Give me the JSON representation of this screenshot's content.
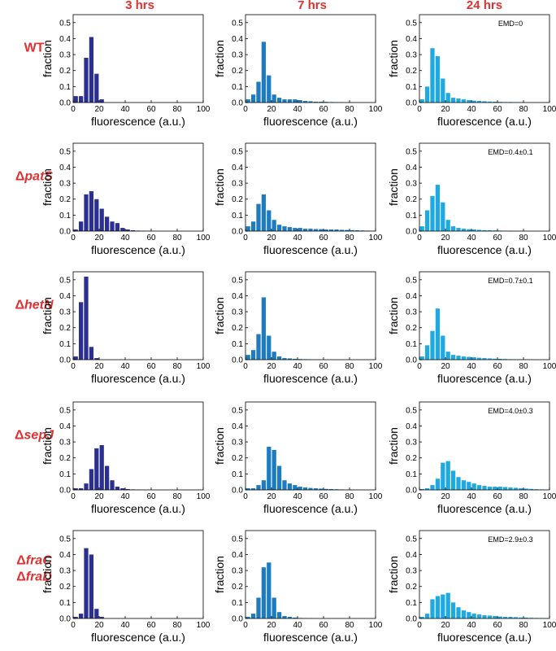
{
  "column_headers": [
    "3 hrs",
    "7 hrs",
    "24 hrs"
  ],
  "row_headers": [
    {
      "prefix": "",
      "name": "WT",
      "line2_prefix": "",
      "line2": ""
    },
    {
      "prefix": "Δ",
      "name": "patS",
      "line2_prefix": "",
      "line2": ""
    },
    {
      "prefix": "Δ",
      "name": "hetN",
      "line2_prefix": "",
      "line2": ""
    },
    {
      "prefix": "Δ",
      "name": "sepJ",
      "line2_prefix": "",
      "line2": ""
    },
    {
      "prefix": "Δ",
      "name": "fraC",
      "line2_prefix": "Δ",
      "line2": "fraD"
    }
  ],
  "axis": {
    "xlabel": "fluorescence (a.u.)",
    "ylabel": "fraction",
    "xlim": [
      0,
      100
    ],
    "ylim": [
      0,
      0.55
    ],
    "xticks": [
      "0",
      "20",
      "40",
      "60",
      "80",
      "100"
    ],
    "yticks": [
      "0.0",
      "0.1",
      "0.2",
      "0.3",
      "0.4",
      "0.5"
    ],
    "bin_width": 4
  },
  "colors": {
    "3 hrs": "#2b2f8f",
    "7 hrs": "#1d7bbf",
    "24 hrs": "#1fa9e1",
    "headers": "#e03030"
  },
  "chart_data": [
    {
      "type": "bar",
      "row": "WT",
      "col": "3 hrs",
      "color": "#2b2f8f",
      "annotation": "",
      "values": [
        0.04,
        0.04,
        0.28,
        0.41,
        0.18,
        0.02,
        0,
        0,
        0,
        0,
        0,
        0,
        0,
        0,
        0,
        0,
        0,
        0,
        0,
        0,
        0,
        0,
        0,
        0,
        0
      ]
    },
    {
      "type": "bar",
      "row": "WT",
      "col": "7 hrs",
      "color": "#1d7bbf",
      "annotation": "",
      "values": [
        0.02,
        0.05,
        0.13,
        0.38,
        0.17,
        0.05,
        0.03,
        0.02,
        0.02,
        0.02,
        0.015,
        0.01,
        0.008,
        0.005,
        0.005,
        0.004,
        0.003,
        0.002,
        0.002,
        0.001,
        0.001,
        0,
        0,
        0,
        0
      ]
    },
    {
      "type": "bar",
      "row": "WT",
      "col": "24 hrs",
      "color": "#1fa9e1",
      "annotation": "EMD=0",
      "values": [
        0.02,
        0.1,
        0.34,
        0.29,
        0.15,
        0.06,
        0.03,
        0.025,
        0.02,
        0.015,
        0.012,
        0.01,
        0.008,
        0.006,
        0.005,
        0.004,
        0.003,
        0.003,
        0.002,
        0.002,
        0.001,
        0.001,
        0.001,
        0,
        0
      ]
    },
    {
      "type": "bar",
      "row": "ΔpatS",
      "col": "3 hrs",
      "color": "#2b2f8f",
      "annotation": "",
      "values": [
        0.01,
        0.06,
        0.23,
        0.25,
        0.2,
        0.14,
        0.09,
        0.06,
        0.05,
        0.02,
        0.01,
        0.005,
        0.003,
        0.002,
        0.001,
        0,
        0,
        0,
        0,
        0,
        0,
        0,
        0,
        0,
        0
      ]
    },
    {
      "type": "bar",
      "row": "ΔpatS",
      "col": "7 hrs",
      "color": "#1d7bbf",
      "annotation": "",
      "values": [
        0.03,
        0.06,
        0.17,
        0.23,
        0.13,
        0.07,
        0.04,
        0.03,
        0.025,
        0.02,
        0.02,
        0.015,
        0.015,
        0.013,
        0.012,
        0.01,
        0.01,
        0.01,
        0.008,
        0.007,
        0.006,
        0.005,
        0.004,
        0.003,
        0.002
      ]
    },
    {
      "type": "bar",
      "row": "ΔpatS",
      "col": "24 hrs",
      "color": "#1fa9e1",
      "annotation": "EMD=0.4±0.1",
      "values": [
        0.03,
        0.13,
        0.22,
        0.29,
        0.18,
        0.07,
        0.03,
        0.02,
        0.015,
        0.012,
        0.01,
        0.008,
        0.006,
        0.005,
        0.004,
        0.003,
        0.002,
        0.002,
        0.001,
        0.001,
        0,
        0,
        0,
        0,
        0
      ]
    },
    {
      "type": "bar",
      "row": "ΔhetN",
      "col": "3 hrs",
      "color": "#2b2f8f",
      "annotation": "",
      "values": [
        0.02,
        0.36,
        0.52,
        0.08,
        0.01,
        0,
        0,
        0,
        0,
        0,
        0,
        0,
        0,
        0,
        0,
        0,
        0,
        0,
        0,
        0,
        0,
        0,
        0,
        0,
        0
      ]
    },
    {
      "type": "bar",
      "row": "ΔhetN",
      "col": "7 hrs",
      "color": "#1d7bbf",
      "annotation": "",
      "values": [
        0.03,
        0.06,
        0.16,
        0.39,
        0.15,
        0.05,
        0.02,
        0.01,
        0.008,
        0.005,
        0.004,
        0.003,
        0.002,
        0.001,
        0.001,
        0,
        0,
        0,
        0,
        0,
        0,
        0,
        0,
        0,
        0
      ]
    },
    {
      "type": "bar",
      "row": "ΔhetN",
      "col": "24 hrs",
      "color": "#1fa9e1",
      "annotation": "EMD=0.7±0.1",
      "values": [
        0.02,
        0.09,
        0.18,
        0.32,
        0.15,
        0.05,
        0.03,
        0.025,
        0.02,
        0.018,
        0.015,
        0.012,
        0.01,
        0.008,
        0.006,
        0.005,
        0.004,
        0.003,
        0.002,
        0.002,
        0.001,
        0.001,
        0,
        0,
        0
      ]
    },
    {
      "type": "bar",
      "row": "ΔsepJ",
      "col": "3 hrs",
      "color": "#2b2f8f",
      "annotation": "",
      "values": [
        0.01,
        0.01,
        0.04,
        0.13,
        0.26,
        0.28,
        0.15,
        0.06,
        0.02,
        0.01,
        0.005,
        0.003,
        0.002,
        0.001,
        0,
        0,
        0,
        0,
        0,
        0,
        0,
        0,
        0,
        0,
        0
      ]
    },
    {
      "type": "bar",
      "row": "ΔsepJ",
      "col": "7 hrs",
      "color": "#1d7bbf",
      "annotation": "",
      "values": [
        0.01,
        0.01,
        0.03,
        0.06,
        0.27,
        0.25,
        0.15,
        0.06,
        0.04,
        0.03,
        0.02,
        0.015,
        0.012,
        0.01,
        0.008,
        0.006,
        0.005,
        0.004,
        0.003,
        0.002,
        0.002,
        0.001,
        0.001,
        0,
        0
      ]
    },
    {
      "type": "bar",
      "row": "ΔsepJ",
      "col": "24 hrs",
      "color": "#1fa9e1",
      "annotation": "EMD=4.0±0.3",
      "values": [
        0.005,
        0.01,
        0.03,
        0.07,
        0.17,
        0.18,
        0.12,
        0.08,
        0.06,
        0.05,
        0.04,
        0.03,
        0.025,
        0.02,
        0.02,
        0.02,
        0.018,
        0.015,
        0.013,
        0.01,
        0.008,
        0.006,
        0.004,
        0.003,
        0.002
      ]
    },
    {
      "type": "bar",
      "row": "ΔfraC ΔfraD",
      "col": "3 hrs",
      "color": "#2b2f8f",
      "annotation": "",
      "values": [
        0.01,
        0.03,
        0.44,
        0.4,
        0.06,
        0.01,
        0,
        0,
        0,
        0,
        0,
        0,
        0,
        0,
        0,
        0,
        0,
        0,
        0,
        0,
        0,
        0,
        0,
        0,
        0
      ]
    },
    {
      "type": "bar",
      "row": "ΔfraC ΔfraD",
      "col": "7 hrs",
      "color": "#1d7bbf",
      "annotation": "",
      "values": [
        0.01,
        0.03,
        0.13,
        0.32,
        0.35,
        0.13,
        0.04,
        0.015,
        0.01,
        0.005,
        0.003,
        0.002,
        0.001,
        0,
        0,
        0,
        0,
        0,
        0,
        0,
        0,
        0,
        0,
        0,
        0
      ]
    },
    {
      "type": "bar",
      "row": "ΔfraC ΔfraD",
      "col": "24 hrs",
      "color": "#1fa9e1",
      "annotation": "EMD=2.9±0.3",
      "values": [
        0.01,
        0.03,
        0.12,
        0.14,
        0.15,
        0.16,
        0.1,
        0.07,
        0.05,
        0.04,
        0.03,
        0.025,
        0.02,
        0.018,
        0.015,
        0.012,
        0.01,
        0.01,
        0.008,
        0.006,
        0.005,
        0.004,
        0.003,
        0.002,
        0.001
      ]
    }
  ]
}
